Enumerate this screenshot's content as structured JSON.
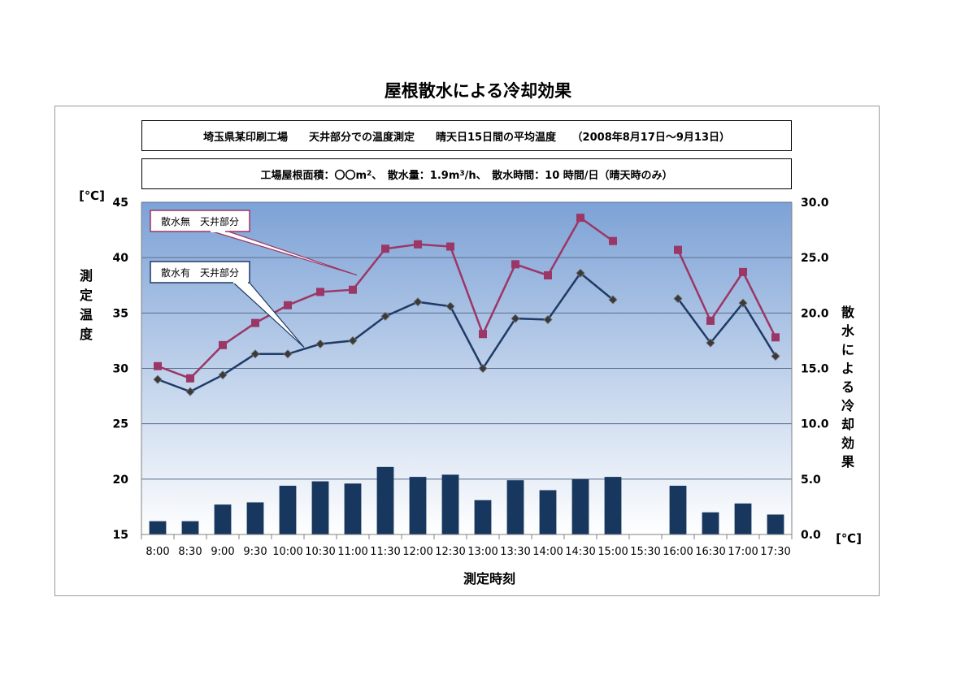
{
  "title": "屋根散水による冷却効果",
  "info_box_1": "埼玉県某印刷工場　　天井部分での温度測定　　晴天日15日間の平均温度　　（2008年8月17日～9月13日）",
  "info_box_2": {
    "pre": "工場屋根面積：〇〇m",
    "sup1": "2",
    "mid": "、　散水量：1.9m",
    "sup2": "3",
    "post": "/h、　散水時間：10 時間/日（晴天時のみ）"
  },
  "colors": {
    "no_spray": "#9b3766",
    "spray": "#1f3b66",
    "bar": "#17375e",
    "plot_top": "#7da2d6",
    "plot_bottom": "#ffffff",
    "gridline": "#5a6e8c"
  },
  "chart_data": {
    "type": "line",
    "title": "屋根散水による冷却効果",
    "xlabel": "測定時刻",
    "ylabel": "測定温度",
    "ylabel_unit": "[℃]",
    "y2label": "散水による冷却効果",
    "y2label_unit": "[℃]",
    "ylim": [
      15,
      45
    ],
    "y_ticks": [
      "15",
      "20",
      "25",
      "30",
      "35",
      "40",
      "45"
    ],
    "y2lim": [
      0,
      30
    ],
    "y2_ticks": [
      "0.0",
      "5.0",
      "10.0",
      "15.0",
      "20.0",
      "25.0",
      "30.0"
    ],
    "grid": "horizontal",
    "categories": [
      "8:00",
      "8:30",
      "9:00",
      "9:30",
      "10:00",
      "10:30",
      "11:00",
      "11:30",
      "12:00",
      "12:30",
      "13:00",
      "13:30",
      "14:00",
      "14:30",
      "15:00",
      "15:30",
      "16:00",
      "16:30",
      "17:00",
      "17:30"
    ],
    "series": [
      {
        "name": "散水無　天井部分",
        "type": "line",
        "marker": "square",
        "axis": "left",
        "values": [
          30.2,
          29.1,
          32.1,
          34.1,
          35.7,
          36.9,
          37.1,
          40.8,
          41.2,
          41.0,
          33.1,
          39.4,
          38.4,
          43.6,
          41.5,
          null,
          40.7,
          34.3,
          38.7,
          32.8
        ]
      },
      {
        "name": "散水有　天井部分",
        "type": "line",
        "marker": "diamond",
        "axis": "left",
        "values": [
          29.0,
          27.9,
          29.4,
          31.3,
          31.3,
          32.2,
          32.5,
          34.7,
          36.0,
          35.6,
          30.0,
          34.5,
          34.4,
          38.6,
          36.2,
          null,
          36.3,
          32.3,
          35.9,
          31.1
        ]
      },
      {
        "name": "散水による冷却効果",
        "type": "bar",
        "axis": "right",
        "values": [
          1.2,
          1.2,
          2.7,
          2.9,
          4.4,
          4.8,
          4.6,
          6.1,
          5.2,
          5.4,
          3.1,
          4.9,
          4.0,
          5.0,
          5.2,
          null,
          4.4,
          2.0,
          2.8,
          1.8
        ]
      }
    ],
    "legend_callouts": [
      {
        "label": "散水無　天井部分",
        "series": 0
      },
      {
        "label": "散水有　天井部分",
        "series": 1
      }
    ]
  }
}
